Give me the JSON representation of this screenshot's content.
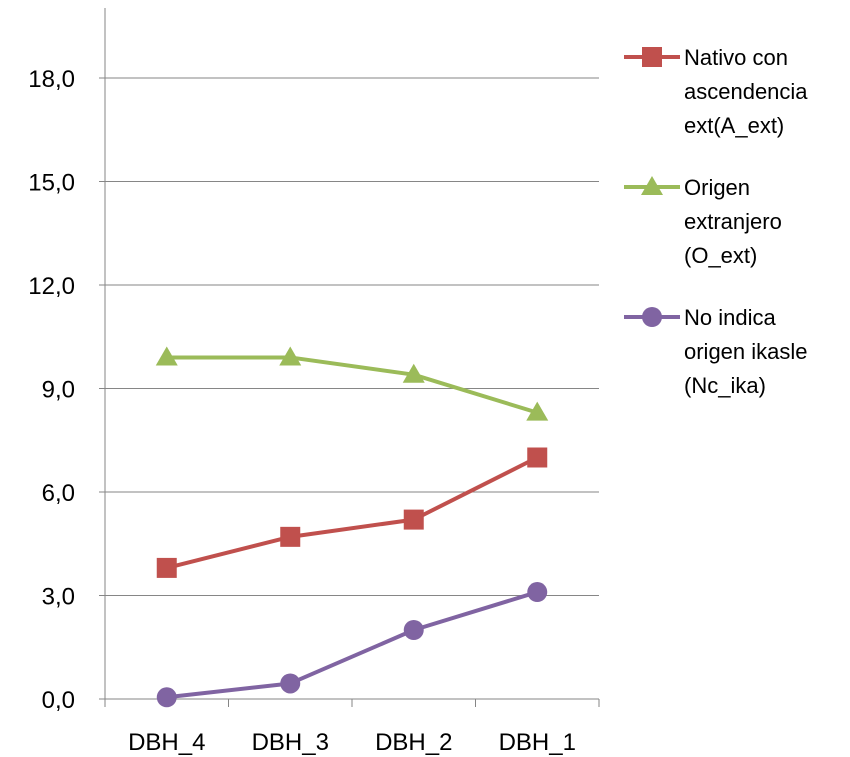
{
  "chart_data": {
    "type": "line",
    "categories": [
      "DBH_4",
      "DBH_3",
      "DBH_2",
      "DBH_1"
    ],
    "ylim": [
      0,
      21
    ],
    "yticks": [
      0,
      3,
      6,
      9,
      12,
      15,
      18
    ],
    "ytick_labels": [
      "0,0",
      "3,0",
      "6,0",
      "9,0",
      "12,0",
      "15,0",
      "18,0"
    ],
    "grid": true,
    "legend_position": "right",
    "series": [
      {
        "name_lines": [
          "Nativo con",
          "ascendencia",
          "ext(A_ext)"
        ],
        "color": "#C0504D",
        "marker": "square",
        "values": [
          3.8,
          4.7,
          5.2,
          7.0
        ]
      },
      {
        "name_lines": [
          "Origen",
          "extranjero",
          "(O_ext)"
        ],
        "color": "#9BBB59",
        "marker": "triangle",
        "values": [
          9.9,
          9.9,
          9.4,
          8.3
        ]
      },
      {
        "name_lines": [
          "No indica",
          "origen ikasle",
          "(Nc_ika)"
        ],
        "color": "#8064A2",
        "marker": "circle",
        "values": [
          0.05,
          0.45,
          2.0,
          3.1
        ]
      }
    ]
  }
}
